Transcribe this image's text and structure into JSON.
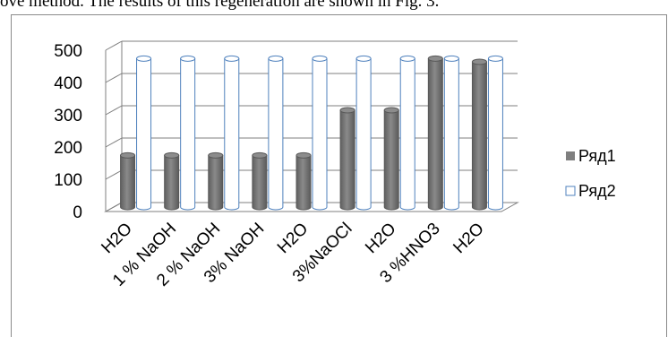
{
  "caption": "ove method. The results of this regeneration are shown in Fig. 3.",
  "chart_data": {
    "type": "bar",
    "categories": [
      "H2O",
      "1 %  NaOH",
      "2 % NaOH",
      "3% NaOH",
      "H2O",
      "3%NaOCl",
      "H2O",
      "3 %HNO3",
      "H2O"
    ],
    "series": [
      {
        "name": "Ряд1",
        "values": [
          160,
          160,
          160,
          160,
          160,
          300,
          300,
          460,
          450
        ],
        "color": "#7f7f7f"
      },
      {
        "name": "Ряд2",
        "values": [
          460,
          460,
          460,
          460,
          460,
          460,
          460,
          460,
          460
        ],
        "color": "#ffffff",
        "outline": "#4f81bd"
      }
    ],
    "title": "",
    "xlabel": "",
    "ylabel": "",
    "ylim": [
      0,
      500
    ],
    "yticks": [
      0,
      100,
      200,
      300,
      400,
      500
    ],
    "grid": true,
    "legend": "right",
    "style": "3d-cylinder"
  }
}
